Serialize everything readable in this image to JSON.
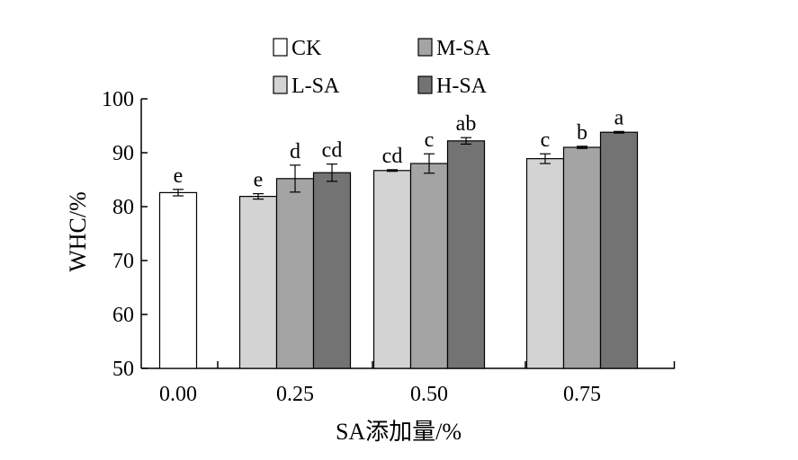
{
  "chart_data": {
    "type": "bar",
    "xlabel": "SA添加量/%",
    "ylabel": "WHC/%",
    "ylim": [
      50,
      100
    ],
    "yticks": [
      50,
      60,
      70,
      80,
      90,
      100
    ],
    "legend_placement": "top-center",
    "groups": [
      {
        "label": "0.00",
        "bars": [
          {
            "series": "CK",
            "value": 82.6,
            "error": 0.6,
            "sig": "e"
          }
        ]
      },
      {
        "label": "0.25",
        "bars": [
          {
            "series": "L-SA",
            "value": 81.9,
            "error": 0.5,
            "sig": "e"
          },
          {
            "series": "M-SA",
            "value": 85.2,
            "error": 2.5,
            "sig": "d"
          },
          {
            "series": "H-SA",
            "value": 86.3,
            "error": 1.6,
            "sig": "cd"
          }
        ]
      },
      {
        "label": "0.50",
        "bars": [
          {
            "series": "L-SA",
            "value": 86.7,
            "error": 0.15,
            "sig": "cd"
          },
          {
            "series": "M-SA",
            "value": 88.0,
            "error": 1.8,
            "sig": "c"
          },
          {
            "series": "H-SA",
            "value": 92.2,
            "error": 0.6,
            "sig": "ab"
          }
        ]
      },
      {
        "label": "0.75",
        "bars": [
          {
            "series": "L-SA",
            "value": 88.9,
            "error": 0.9,
            "sig": "c"
          },
          {
            "series": "M-SA",
            "value": 91.0,
            "error": 0.2,
            "sig": "b"
          },
          {
            "series": "H-SA",
            "value": 93.8,
            "error": 0.15,
            "sig": "a"
          }
        ]
      }
    ],
    "series": [
      {
        "name": "CK",
        "color": "#ffffff"
      },
      {
        "name": "L-SA",
        "color": "#d3d3d3"
      },
      {
        "name": "M-SA",
        "color": "#a4a4a4"
      },
      {
        "name": "H-SA",
        "color": "#737373"
      }
    ]
  }
}
